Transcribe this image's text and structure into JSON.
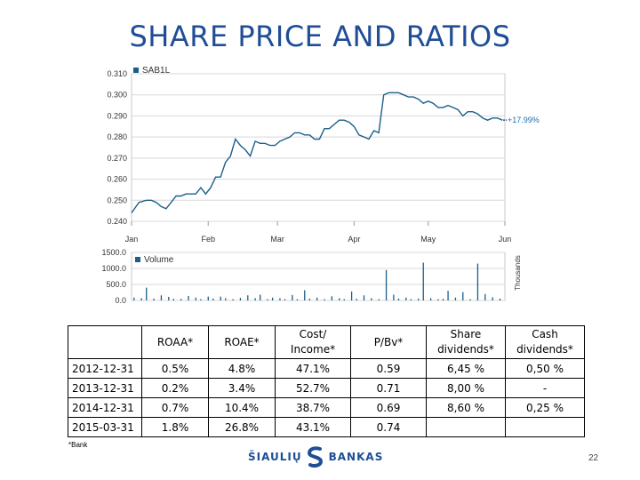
{
  "page": {
    "title": "SHARE PRICE AND RATIOS",
    "footnote": "*Bank",
    "page_number": "22",
    "logo": {
      "left_word": "ŠIAULIŲ",
      "right_word": "BANKAS"
    }
  },
  "colors": {
    "title": "#1f4e96",
    "series": "#1a5f8a",
    "grid": "#d8d8d8",
    "change": "#1f6fb0"
  },
  "chart_data": [
    {
      "type": "line",
      "legend": [
        "SAB1L"
      ],
      "change_label": "+17.99%",
      "y_ticks": [
        "0.310",
        "0.300",
        "0.290",
        "0.280",
        "0.270",
        "0.260",
        "0.250",
        "0.240"
      ],
      "ylim": [
        0.24,
        0.31
      ],
      "x_ticks": [
        "Jan",
        "Feb",
        "Mar",
        "Apr",
        "May",
        "Jun"
      ],
      "x_tick_pos": [
        0,
        31,
        59,
        90,
        120,
        151
      ],
      "xlim": [
        0,
        151
      ],
      "series": [
        {
          "name": "SAB1L",
          "x": [
            0,
            3,
            6,
            8,
            10,
            12,
            14,
            16,
            18,
            20,
            22,
            24,
            26,
            28,
            30,
            32,
            34,
            36,
            38,
            40,
            42,
            44,
            46,
            48,
            50,
            52,
            54,
            56,
            58,
            60,
            62,
            64,
            66,
            68,
            70,
            72,
            74,
            76,
            78,
            80,
            82,
            84,
            86,
            88,
            90,
            92,
            94,
            96,
            98,
            100,
            102,
            104,
            106,
            108,
            110,
            112,
            114,
            116,
            118,
            120,
            122,
            124,
            126,
            128,
            130,
            132,
            134,
            136,
            138,
            140,
            142,
            144,
            146,
            148,
            150
          ],
          "values": [
            0.244,
            0.249,
            0.25,
            0.25,
            0.249,
            0.247,
            0.246,
            0.249,
            0.252,
            0.252,
            0.253,
            0.253,
            0.253,
            0.256,
            0.253,
            0.256,
            0.261,
            0.261,
            0.268,
            0.271,
            0.279,
            0.276,
            0.274,
            0.271,
            0.278,
            0.277,
            0.277,
            0.276,
            0.276,
            0.278,
            0.279,
            0.28,
            0.282,
            0.282,
            0.281,
            0.281,
            0.279,
            0.279,
            0.284,
            0.284,
            0.286,
            0.288,
            0.288,
            0.287,
            0.285,
            0.281,
            0.28,
            0.279,
            0.283,
            0.282,
            0.3,
            0.301,
            0.301,
            0.301,
            0.3,
            0.299,
            0.299,
            0.298,
            0.296,
            0.297,
            0.296,
            0.294,
            0.294,
            0.295,
            0.294,
            0.293,
            0.29,
            0.292,
            0.292,
            0.291,
            0.289,
            0.288,
            0.289,
            0.289,
            0.288
          ]
        }
      ]
    },
    {
      "type": "bar",
      "legend": [
        "Volume"
      ],
      "unit_label": "Thousands",
      "y_ticks": [
        "1500.0",
        "1000.0",
        "500.0",
        "0.0"
      ],
      "ylim": [
        0,
        1500
      ],
      "xlim": [
        0,
        151
      ],
      "series": [
        {
          "name": "Volume",
          "x": [
            1,
            4,
            6,
            9,
            12,
            15,
            17,
            20,
            23,
            26,
            28,
            31,
            33,
            36,
            38,
            41,
            44,
            47,
            50,
            52,
            55,
            57,
            60,
            62,
            65,
            67,
            70,
            72,
            75,
            78,
            81,
            84,
            86,
            89,
            91,
            94,
            97,
            100,
            103,
            106,
            108,
            111,
            113,
            116,
            118,
            121,
            124,
            126,
            128,
            131,
            134,
            137,
            140,
            143,
            146,
            149
          ],
          "values": [
            90,
            70,
            400,
            60,
            160,
            110,
            50,
            50,
            140,
            90,
            40,
            120,
            60,
            120,
            70,
            40,
            80,
            160,
            70,
            180,
            40,
            90,
            70,
            40,
            170,
            40,
            320,
            60,
            90,
            40,
            130,
            70,
            40,
            280,
            50,
            160,
            70,
            40,
            950,
            180,
            60,
            90,
            40,
            60,
            1180,
            70,
            40,
            50,
            300,
            90,
            260,
            40,
            1150,
            200,
            100,
            60
          ]
        }
      ]
    }
  ],
  "table": {
    "headers": [
      "",
      "ROAA*",
      "ROAE*",
      "Cost/ Income*",
      "P/Bv*",
      "Share dividends*",
      "Cash dividends*"
    ],
    "rows": [
      [
        "2012-12-31",
        "0.5%",
        "4.8%",
        "47.1%",
        "0.59",
        "6,45 %",
        "0,50 %"
      ],
      [
        "2013-12-31",
        "0.2%",
        "3.4%",
        "52.7%",
        "0.71",
        "8,00 %",
        "-"
      ],
      [
        "2014-12-31",
        "0.7%",
        "10.4%",
        "38.7%",
        "0.69",
        "8,60 %",
        "0,25 %"
      ],
      [
        "2015-03-31",
        "1.8%",
        "26.8%",
        "43.1%",
        "0.74",
        "",
        ""
      ]
    ]
  }
}
